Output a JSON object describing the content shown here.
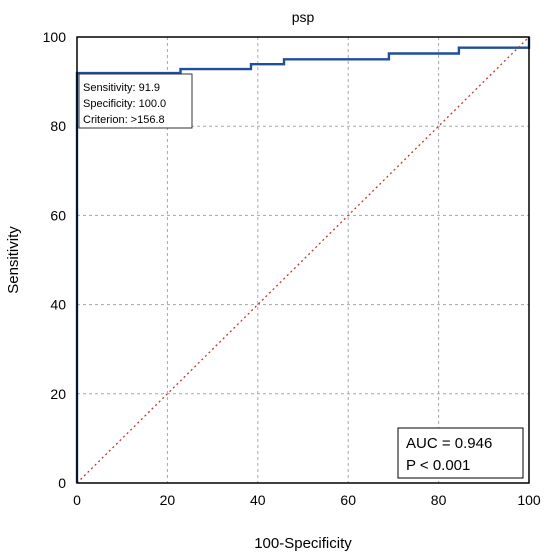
{
  "chart_data": {
    "type": "line",
    "title": "psp",
    "xlabel": "100-Specificity",
    "ylabel": "Sensitivity",
    "xlim": [
      0,
      100
    ],
    "ylim": [
      0,
      100
    ],
    "x_ticks": [
      "0",
      "20",
      "40",
      "60",
      "80",
      "100"
    ],
    "y_ticks": [
      "0",
      "20",
      "40",
      "60",
      "80",
      "100"
    ],
    "grid": true,
    "series": [
      {
        "style": "solid",
        "color": "#1f4e9c",
        "points": [
          [
            0,
            0
          ],
          [
            0,
            91.9
          ],
          [
            22.9,
            91.9
          ],
          [
            22.9,
            92.8
          ],
          [
            38.5,
            92.8
          ],
          [
            38.5,
            93.9
          ],
          [
            45.8,
            93.9
          ],
          [
            45.8,
            95.0
          ],
          [
            69.0,
            95.0
          ],
          [
            69.0,
            96.3
          ],
          [
            84.5,
            96.3
          ],
          [
            84.5,
            97.6
          ],
          [
            100,
            97.6
          ],
          [
            100,
            100
          ]
        ]
      },
      {
        "style": "dotted",
        "color": "#c0392b",
        "points": [
          [
            0,
            0
          ],
          [
            100,
            100
          ]
        ]
      }
    ],
    "annotation": {
      "lines": [
        "Sensitivity: 91.9",
        "Specificity: 100.0",
        "Criterion: >156.8"
      ]
    },
    "stats": {
      "auc": "AUC = 0.946",
      "p": "P < 0.001"
    }
  }
}
